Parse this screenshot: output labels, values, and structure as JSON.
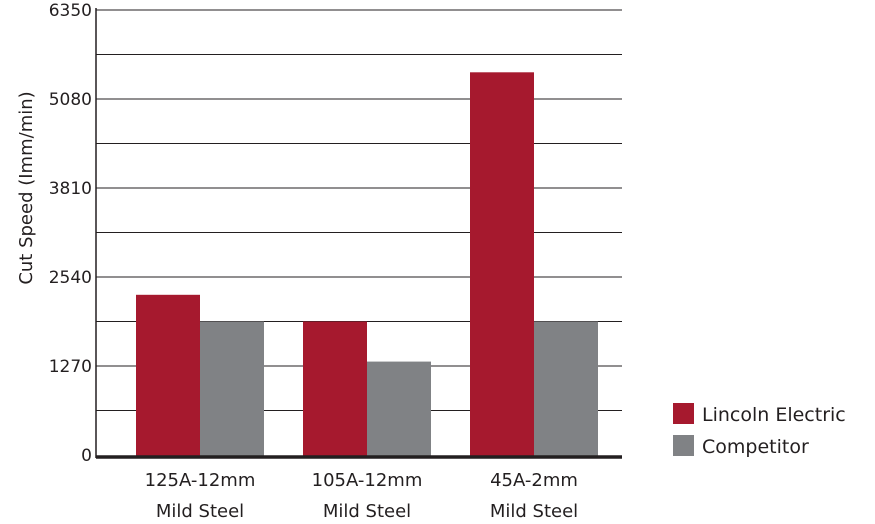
{
  "chart_data": {
    "type": "bar",
    "title": "",
    "xlabel": "",
    "ylabel": "Cut Speed (Imm/min)",
    "ylim": [
      0,
      6350
    ],
    "yticks": [
      "0",
      "1270",
      "2540",
      "3810",
      "5080",
      "6350"
    ],
    "grid": true,
    "legend_position": "right",
    "categories": [
      [
        "125A-12mm",
        "Mild Steel"
      ],
      [
        "105A-12mm",
        "Mild Steel"
      ],
      [
        "45A-2mm",
        "Mild Steel"
      ]
    ],
    "series": [
      {
        "name": "Lincoln Electric",
        "color": "#a6192e",
        "values": [
          2286,
          1905,
          5461
        ]
      },
      {
        "name": "Competitor",
        "color": "#808285",
        "values": [
          1905,
          1333,
          1905
        ]
      }
    ]
  }
}
